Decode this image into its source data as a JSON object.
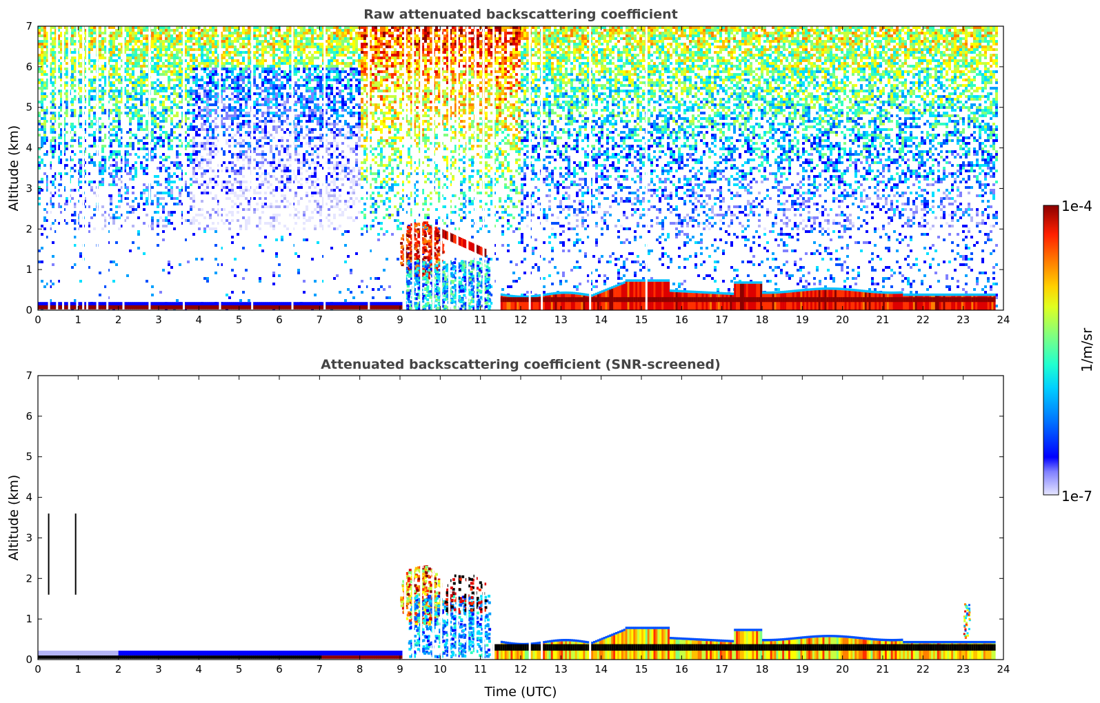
{
  "chart_data": [
    {
      "type": "heatmap",
      "title": "Raw attenuated backscattering coefficient",
      "xlabel": "",
      "ylabel": "Altitude (km)",
      "xlim": [
        0,
        24
      ],
      "ylim": [
        0,
        7
      ],
      "x_ticks": [
        "0",
        "1",
        "2",
        "3",
        "4",
        "5",
        "6",
        "7",
        "8",
        "9",
        "10",
        "11",
        "12",
        "13",
        "14",
        "15",
        "16",
        "17",
        "18",
        "19",
        "20",
        "21",
        "22",
        "23",
        "24"
      ],
      "y_ticks": [
        "0",
        "1",
        "2",
        "3",
        "4",
        "5",
        "6",
        "7"
      ],
      "features": [
        {
          "feature": "boundary layer top (strong backscatter)",
          "time_utc": [
            0,
            9
          ],
          "altitude_km": [
            0.05,
            0.2
          ]
        },
        {
          "feature": "cloud / aerosol layer",
          "time_utc": [
            9,
            10
          ],
          "altitude_km": [
            0.8,
            2.2
          ]
        },
        {
          "feature": "elevated layer",
          "time_utc": [
            10,
            11
          ],
          "altitude_km": [
            1.3,
            2.1
          ]
        },
        {
          "feature": "mixed layer",
          "time_utc": [
            11.5,
            23.8
          ],
          "altitude_km": [
            0.0,
            0.7
          ]
        },
        {
          "feature": "noisy high-altitude signal",
          "time_utc": [
            0,
            23.8
          ],
          "altitude_km": [
            2,
            7
          ]
        }
      ]
    },
    {
      "type": "heatmap",
      "title": "Attenuated backscattering coefficient (SNR-screened)",
      "xlabel": "Time (UTC)",
      "ylabel": "Altitude (km)",
      "xlim": [
        0,
        24
      ],
      "ylim": [
        0,
        7
      ],
      "x_ticks": [
        "0",
        "1",
        "2",
        "3",
        "4",
        "5",
        "6",
        "7",
        "8",
        "9",
        "10",
        "11",
        "12",
        "13",
        "14",
        "15",
        "16",
        "17",
        "18",
        "19",
        "20",
        "21",
        "22",
        "23",
        "24"
      ],
      "y_ticks": [
        "0",
        "1",
        "2",
        "3",
        "4",
        "5",
        "6",
        "7"
      ],
      "features": [
        {
          "feature": "boundary layer top",
          "time_utc": [
            0,
            9
          ],
          "altitude_km": [
            0.05,
            0.2
          ]
        },
        {
          "feature": "cloud / aerosol layer",
          "time_utc": [
            9,
            11.2
          ],
          "altitude_km": [
            0.2,
            2.3
          ]
        },
        {
          "feature": "mixed layer",
          "time_utc": [
            11.3,
            23.8
          ],
          "altitude_km": [
            0.0,
            0.8
          ]
        }
      ]
    }
  ],
  "colorbar": {
    "max_label": "1e-4",
    "min_label": "1e-7",
    "units_label": "1/m/sr",
    "colors": [
      "#e6e6ff",
      "#b4b4f5",
      "#8080ff",
      "#0000ff",
      "#0050ff",
      "#00a0ff",
      "#00e0ff",
      "#30ffc0",
      "#80ff80",
      "#c8ff40",
      "#ffff00",
      "#ffc000",
      "#ff8000",
      "#ff3000",
      "#dd0000",
      "#8b0000"
    ]
  }
}
